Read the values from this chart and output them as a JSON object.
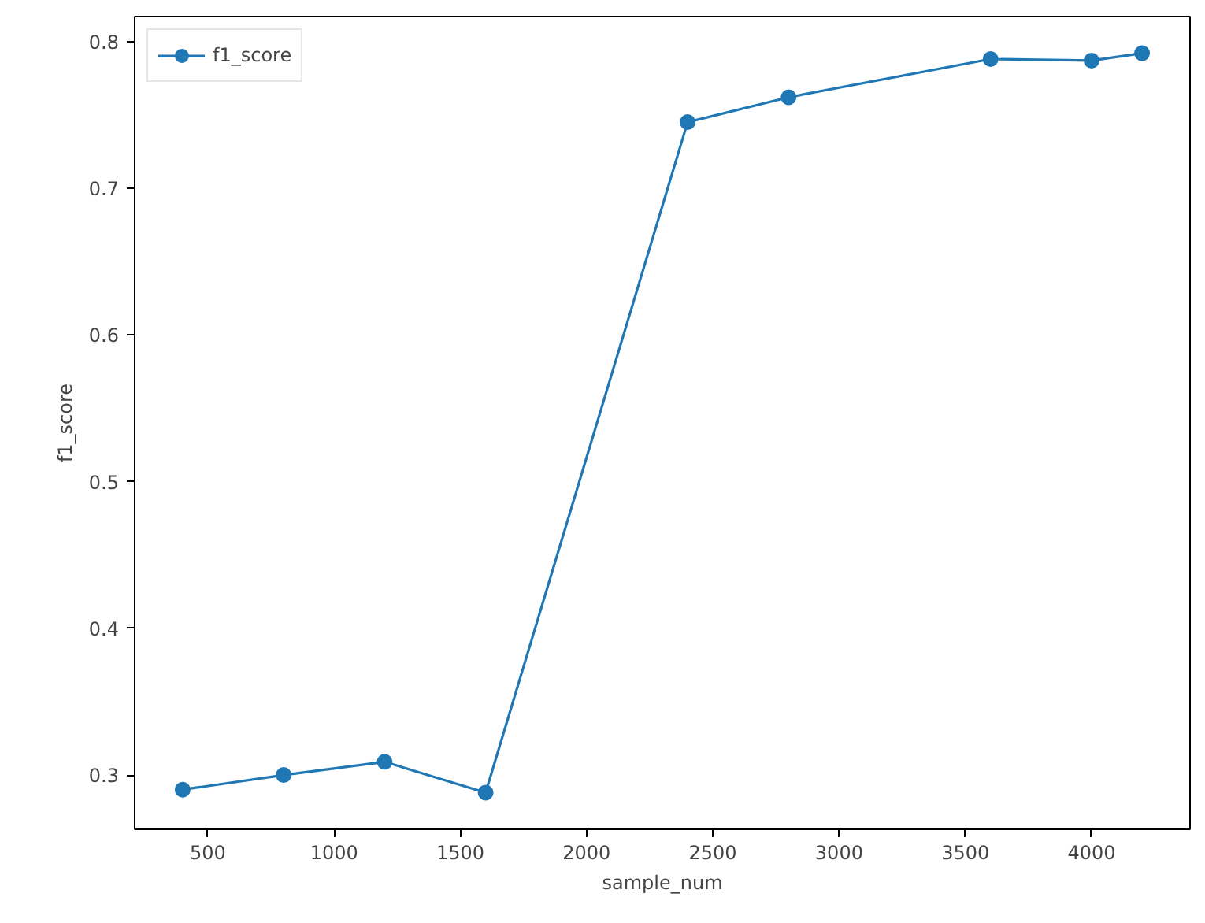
{
  "chart_data": {
    "type": "line",
    "xlabel": "sample_num",
    "ylabel": "f1_score",
    "x": [
      400,
      800,
      1200,
      1600,
      2400,
      2800,
      3600,
      4000,
      4200
    ],
    "series": [
      {
        "name": "f1_score",
        "color": "#1f77b4",
        "values": [
          0.29,
          0.3,
          0.309,
          0.288,
          0.745,
          0.762,
          0.788,
          0.787,
          0.792
        ]
      }
    ],
    "xlim": [
      210,
      4390
    ],
    "ylim": [
      0.263,
      0.817
    ],
    "xticks": [
      500,
      1000,
      1500,
      2000,
      2500,
      3000,
      3500,
      4000
    ],
    "yticks": [
      0.3,
      0.4,
      0.5,
      0.6,
      0.7,
      0.8
    ],
    "grid": false,
    "legend": "top left",
    "marker": "circle",
    "line_style": "solid"
  }
}
